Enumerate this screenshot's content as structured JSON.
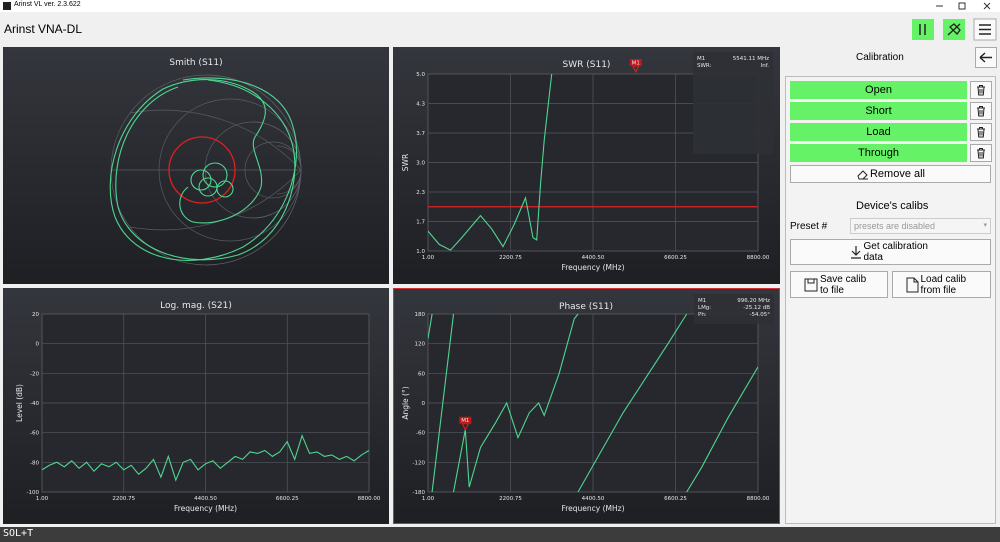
{
  "window": {
    "title": "Arinst VL ver. 2.3.622"
  },
  "header": {
    "title": "Arinst VNA-DL"
  },
  "chart_data": [
    {
      "type": "smith",
      "title": "Smith (S11)"
    },
    {
      "type": "line",
      "title": "SWR (S11)",
      "xlabel": "Frequency (MHz)",
      "ylabel": "SWR",
      "xlim": [
        1,
        8800
      ],
      "ylim": [
        1,
        5
      ],
      "xticks": [
        {
          "value": 1,
          "label": "1.00"
        },
        {
          "value": 2200.75,
          "label": "2200.75"
        },
        {
          "value": 4400.5,
          "label": "4400.50"
        },
        {
          "value": 6600.25,
          "label": "6600.25"
        },
        {
          "value": 8800,
          "label": "8800.00"
        }
      ],
      "yticks": [
        {
          "value": 1,
          "label": "1.0"
        },
        {
          "value": 1.667,
          "label": "1.7"
        },
        {
          "value": 2.333,
          "label": "2.3"
        },
        {
          "value": 3,
          "label": "3.0"
        },
        {
          "value": 3.667,
          "label": "3.7"
        },
        {
          "value": 4.333,
          "label": "4.3"
        },
        {
          "value": 5,
          "label": "5.0"
        }
      ],
      "grid": true,
      "limit_line": 2,
      "limit_color": "#e02020",
      "series": [
        {
          "color": "#4fd690",
          "x": [
            1,
            300,
            600,
            900,
            1400,
            1700,
            2000,
            2300,
            2600,
            2800,
            2900,
            3000,
            3100,
            3300
          ],
          "values": [
            1.45,
            1.15,
            1.02,
            1.3,
            1.8,
            1.5,
            1.1,
            1.6,
            2.2,
            1.3,
            1.25,
            2.5,
            3.5,
            5
          ]
        }
      ],
      "marker": {
        "label": "M1",
        "x": 5541.11
      },
      "info": [
        [
          "M1",
          "5541.11 MHz"
        ],
        [
          "SWR:",
          "Inf."
        ]
      ]
    },
    {
      "type": "line",
      "title": "Log. mag. (S21)",
      "xlabel": "Frequency (MHz)",
      "ylabel": "Level (dB)",
      "xlim": [
        1,
        8800
      ],
      "ylim": [
        -100,
        20
      ],
      "xticks": [
        {
          "value": 1,
          "label": "1.00"
        },
        {
          "value": 2200.75,
          "label": "2200.75"
        },
        {
          "value": 4400.5,
          "label": "4400.50"
        },
        {
          "value": 6600.25,
          "label": "6600.25"
        },
        {
          "value": 8800,
          "label": "8800.00"
        }
      ],
      "yticks": [
        20,
        0,
        -20,
        -40,
        -60,
        -80,
        -100
      ],
      "grid": true,
      "series": [
        {
          "color": "#4fd690",
          "x": [
            1,
            200,
            400,
            600,
            800,
            1000,
            1200,
            1400,
            1600,
            1800,
            2000,
            2200,
            2400,
            2600,
            2800,
            3000,
            3200,
            3400,
            3600,
            3800,
            4000,
            4200,
            4400,
            4600,
            4800,
            5000,
            5200,
            5400,
            5600,
            5800,
            6000,
            6200,
            6400,
            6600,
            6800,
            7000,
            7200,
            7400,
            7600,
            7800,
            8000,
            8200,
            8400,
            8600,
            8800
          ],
          "values": [
            -85,
            -82,
            -80,
            -83,
            -79,
            -84,
            -80,
            -86,
            -81,
            -83,
            -80,
            -85,
            -82,
            -88,
            -84,
            -78,
            -90,
            -76,
            -92,
            -80,
            -78,
            -85,
            -81,
            -79,
            -84,
            -80,
            -76,
            -78,
            -73,
            -74,
            -72,
            -76,
            -73,
            -66,
            -78,
            -62,
            -74,
            -73,
            -76,
            -75,
            -78,
            -76,
            -79,
            -75,
            -72
          ]
        }
      ]
    },
    {
      "type": "line",
      "title": "Phase (S11)",
      "xlabel": "Frequency (MHz)",
      "ylabel": "Angle (°)",
      "xlim": [
        1,
        8800
      ],
      "ylim": [
        -180,
        180
      ],
      "xticks": [
        {
          "value": 1,
          "label": "1.00"
        },
        {
          "value": 2200.75,
          "label": "2200.75"
        },
        {
          "value": 4400.5,
          "label": "4400.50"
        },
        {
          "value": 6600.25,
          "label": "6600.25"
        },
        {
          "value": 8800,
          "label": "8800.00"
        }
      ],
      "yticks": [
        180,
        120,
        60,
        0,
        -60,
        -120,
        -180
      ],
      "grid": true,
      "series": [
        {
          "color": "#4fd690",
          "x": [
            1,
            110,
            110,
            110,
            680,
            680,
            680,
            996.2,
            1100,
            1400,
            1800,
            2100,
            2400,
            2700,
            2950,
            3100,
            3500,
            3900,
            4000,
            4000,
            4000,
            4600,
            5200,
            5800,
            6400,
            6900,
            6900,
            6900,
            7300,
            8000,
            8800
          ],
          "values": [
            130,
            180,
            null,
            -180,
            180,
            null,
            -180,
            -54.05,
            -170,
            -90,
            -40,
            0,
            -70,
            -20,
            0,
            -25,
            60,
            170,
            180,
            null,
            -180,
            -100,
            -20,
            50,
            120,
            180,
            null,
            -180,
            -130,
            -30,
            73
          ]
        }
      ],
      "marker": {
        "label": "M1",
        "x": 996.2,
        "y": -54.05
      },
      "info": [
        [
          "M1",
          "996.20 MHz"
        ],
        [
          "LMg:",
          "-25.12 dB"
        ],
        [
          "Ph:",
          "-54.05°"
        ]
      ]
    }
  ],
  "calibration": {
    "title": "Calibration",
    "steps": [
      "Open",
      "Short",
      "Load",
      "Through"
    ],
    "remove_all": "Remove all",
    "device_title": "Device's calibs",
    "preset_label": "Preset #",
    "preset_value": "presets are disabled",
    "get": "Get calibration data",
    "save": "Save calib to file",
    "load": "Load calib from file"
  },
  "status": "SOL+T"
}
